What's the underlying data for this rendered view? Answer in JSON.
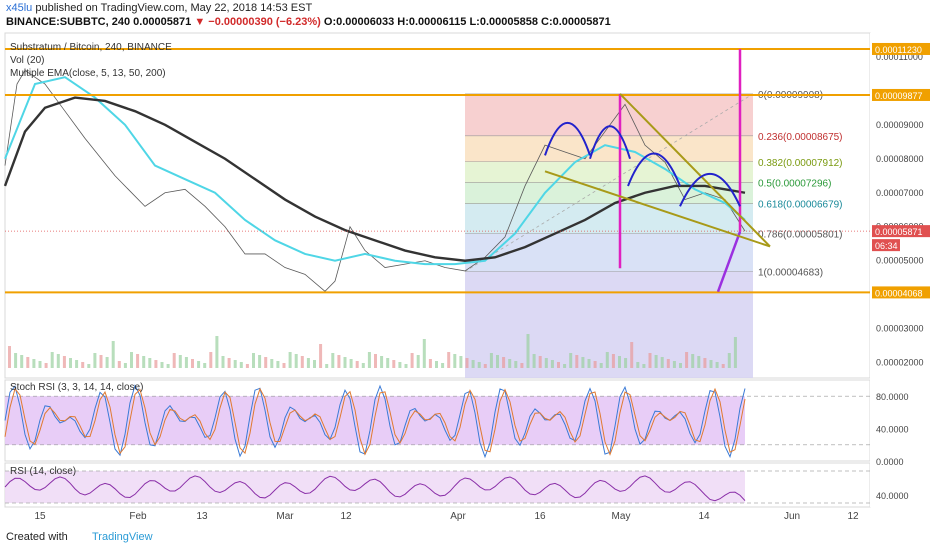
{
  "header": {
    "user": "x45lu",
    "published": "published on TradingView.com, May 22, 2018 14:53 EST",
    "symbol": "BINANCE:SUBBTC, 240",
    "last": "0.00005871",
    "change": "−0.00000390 (−6.23%)",
    "ohlc": "O:0.00006033 H:0.00006115 L:0.00005858 C:0.00005871"
  },
  "legend": {
    "title": "Substratum / Bitcoin, 240, BINANCE",
    "vol": "Vol (20)",
    "ema": "Multiple EMA(close, 5, 13, 50, 200)"
  },
  "colors": {
    "orange": "#f0a000",
    "magenta": "#e020c0",
    "purple": "#9b30e0",
    "blue": "#2222cc",
    "olive": "#a89a18",
    "ema_short": "#4fd6e6",
    "ema_long": "#333333",
    "rsi": "#8a2fa8",
    "label_bg": "#f0a000"
  },
  "chart_data": [
    {
      "type": "line",
      "name": "price",
      "xlabel": "",
      "ylabel": "",
      "x_ticks": [
        "15",
        "Feb",
        "13",
        "Mar",
        "12",
        "Apr",
        "16",
        "May",
        "14",
        "Jun",
        "12"
      ],
      "y_ticks": [
        "0.00011000",
        "0.00009000",
        "0.00008000",
        "0.00007000",
        "0.00006000",
        "0.00005000",
        "0.00003000",
        "0.00002000"
      ],
      "ylim": [
        1.55e-05,
        0.000117
      ],
      "series": [
        {
          "name": "",
          "x": [
            0,
            12,
            20,
            40,
            60,
            80,
            110,
            140,
            160,
            180,
            200,
            220,
            240,
            260,
            280,
            300,
            320,
            330,
            345,
            360,
            380,
            400,
            420,
            440,
            460,
            480,
            500,
            520,
            540,
            560,
            580,
            600,
            620,
            640,
            660,
            680,
            700,
            720,
            740
          ],
          "values": [
            7.8e-05,
            0.000102,
            0.000106,
            0.000102,
            9.4e-05,
            8.6e-05,
            7.5e-05,
            6.6e-05,
            7e-05,
            7.1e-05,
            6.6e-05,
            6e-05,
            5.2e-05,
            5.2e-05,
            4.8e-05,
            4.6e-05,
            4.1e-05,
            4.4e-05,
            6e-05,
            5.3e-05,
            4.8e-05,
            4.9e-05,
            5e-05,
            4.8e-05,
            4.7e-05,
            5.1e-05,
            5.7e-05,
            7.2e-05,
            8.4e-05,
            8.2e-05,
            8e-05,
            8.8e-05,
            9.6e-05,
            8.4e-05,
            7.9e-05,
            6.8e-05,
            7e-05,
            6.8e-05,
            5.871e-05
          ]
        },
        {
          "name": "",
          "x": [
            0,
            30,
            60,
            90,
            120,
            150,
            180,
            210,
            240,
            270,
            300,
            330,
            360,
            390,
            420,
            450,
            480,
            510,
            540,
            570,
            600,
            630,
            660,
            690,
            720,
            740
          ],
          "values": [
            8e-05,
            0.000102,
            0.000104,
            9.8e-05,
            9e-05,
            7.8e-05,
            7.4e-05,
            7e-05,
            6.2e-05,
            5.6e-05,
            5.2e-05,
            5e-05,
            5.2e-05,
            5e-05,
            4.9e-05,
            4.9e-05,
            5e-05,
            5.8e-05,
            7e-05,
            7.9e-05,
            8.4e-05,
            8.2e-05,
            7.7e-05,
            7.1e-05,
            6.7e-05,
            6.2e-05
          ]
        },
        {
          "name": "",
          "x": [
            0,
            20,
            40,
            70,
            100,
            130,
            160,
            190,
            220,
            250,
            280,
            310,
            340,
            370,
            400,
            430,
            460,
            490,
            520,
            550,
            580,
            610,
            640,
            670,
            700,
            720,
            740
          ],
          "values": [
            7.2e-05,
            8.8e-05,
            9.5e-05,
            9.8e-05,
            9.7e-05,
            9.4e-05,
            9e-05,
            8.5e-05,
            8e-05,
            7.4e-05,
            6.8e-05,
            6.3e-05,
            5.9e-05,
            5.6e-05,
            5.3e-05,
            5.1e-05,
            5e-05,
            5.1e-05,
            5.4e-05,
            5.8e-05,
            6.2e-05,
            6.7e-05,
            7e-05,
            7.2e-05,
            7.2e-05,
            7.1e-05,
            7e-05
          ]
        }
      ],
      "price_labels": [
        "0.00011230",
        "0.00009877",
        "0.00005871",
        "06:34",
        "0.00004068"
      ],
      "fib_levels": [
        {
          "label": "0(0.00009908)",
          "value": 9.908e-05
        },
        {
          "label": "0.236(0.00008675)",
          "value": 8.675e-05
        },
        {
          "label": "0.382(0.00007912)",
          "value": 7.912e-05
        },
        {
          "label": "0.5(0.00007296)",
          "value": 7.296e-05
        },
        {
          "label": "0.618(0.00006679)",
          "value": 6.679e-05
        },
        {
          "label": "0.786(0.00005801)",
          "value": 5.801e-05
        },
        {
          "label": "1(0.00004683)",
          "value": 4.683e-05
        }
      ],
      "horizontal_levels": [
        0.0001123,
        9.877e-05,
        4.068e-05
      ]
    },
    {
      "type": "line",
      "name": "stoch-rsi",
      "title": "Stoch RSI (3, 3, 14, 14, close)",
      "y_ticks": [
        "80.0000",
        "40.0000",
        "0.0000"
      ],
      "ylim": [
        0,
        100
      ],
      "bands": [
        20,
        80
      ]
    },
    {
      "type": "line",
      "name": "rsi",
      "title": "RSI (14, close)",
      "y_ticks": [
        "40.0000"
      ],
      "ylim": [
        25,
        80
      ],
      "bands": [
        30,
        70
      ]
    }
  ],
  "footer": {
    "made_with": "Created with",
    "brand": "TradingView"
  }
}
